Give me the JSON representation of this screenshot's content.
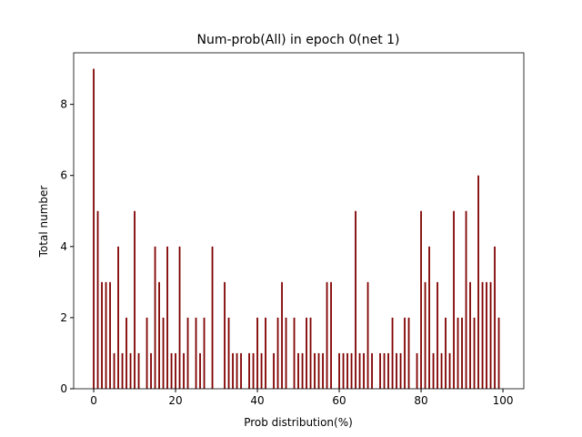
{
  "chart_data": {
    "type": "bar",
    "title": "Num-prob(All) in epoch 0(net 1)",
    "x_label": "Prob distribution(%)",
    "y_label": "Total number",
    "x": [
      0,
      1,
      2,
      3,
      4,
      5,
      6,
      7,
      8,
      9,
      10,
      11,
      12,
      13,
      14,
      15,
      16,
      17,
      18,
      19,
      20,
      21,
      22,
      23,
      24,
      25,
      26,
      27,
      28,
      29,
      30,
      31,
      32,
      33,
      34,
      35,
      36,
      37,
      38,
      39,
      40,
      41,
      42,
      43,
      44,
      45,
      46,
      47,
      48,
      49,
      50,
      51,
      52,
      53,
      54,
      55,
      56,
      57,
      58,
      59,
      60,
      61,
      62,
      63,
      64,
      65,
      66,
      67,
      68,
      69,
      70,
      71,
      72,
      73,
      74,
      75,
      76,
      77,
      78,
      79,
      80,
      81,
      82,
      83,
      84,
      85,
      86,
      87,
      88,
      89,
      90,
      91,
      92,
      93,
      94,
      95,
      96,
      97,
      98,
      99
    ],
    "values": [
      9,
      5,
      3,
      3,
      3,
      1,
      4,
      1,
      2,
      1,
      5,
      1,
      0,
      2,
      1,
      4,
      3,
      2,
      4,
      1,
      1,
      4,
      1,
      2,
      0,
      2,
      1,
      2,
      0,
      4,
      0,
      0,
      3,
      2,
      1,
      1,
      1,
      0,
      1,
      1,
      2,
      1,
      2,
      0,
      1,
      2,
      3,
      2,
      0,
      2,
      1,
      1,
      2,
      2,
      1,
      1,
      1,
      3,
      3,
      0,
      1,
      1,
      1,
      1,
      5,
      1,
      1,
      3,
      1,
      0,
      1,
      1,
      1,
      2,
      1,
      1,
      2,
      2,
      0,
      1,
      5,
      3,
      4,
      1,
      3,
      1,
      2,
      1,
      5,
      2,
      2,
      5,
      3,
      2,
      6,
      3,
      3,
      3,
      4,
      2
    ],
    "color": "#800000",
    "xlim": [
      -4.9,
      105.1
    ],
    "ylim": [
      0,
      9.45
    ],
    "xticks": [
      0,
      20,
      40,
      60,
      80,
      100
    ],
    "yticks": [
      0,
      2,
      4,
      6,
      8
    ]
  }
}
